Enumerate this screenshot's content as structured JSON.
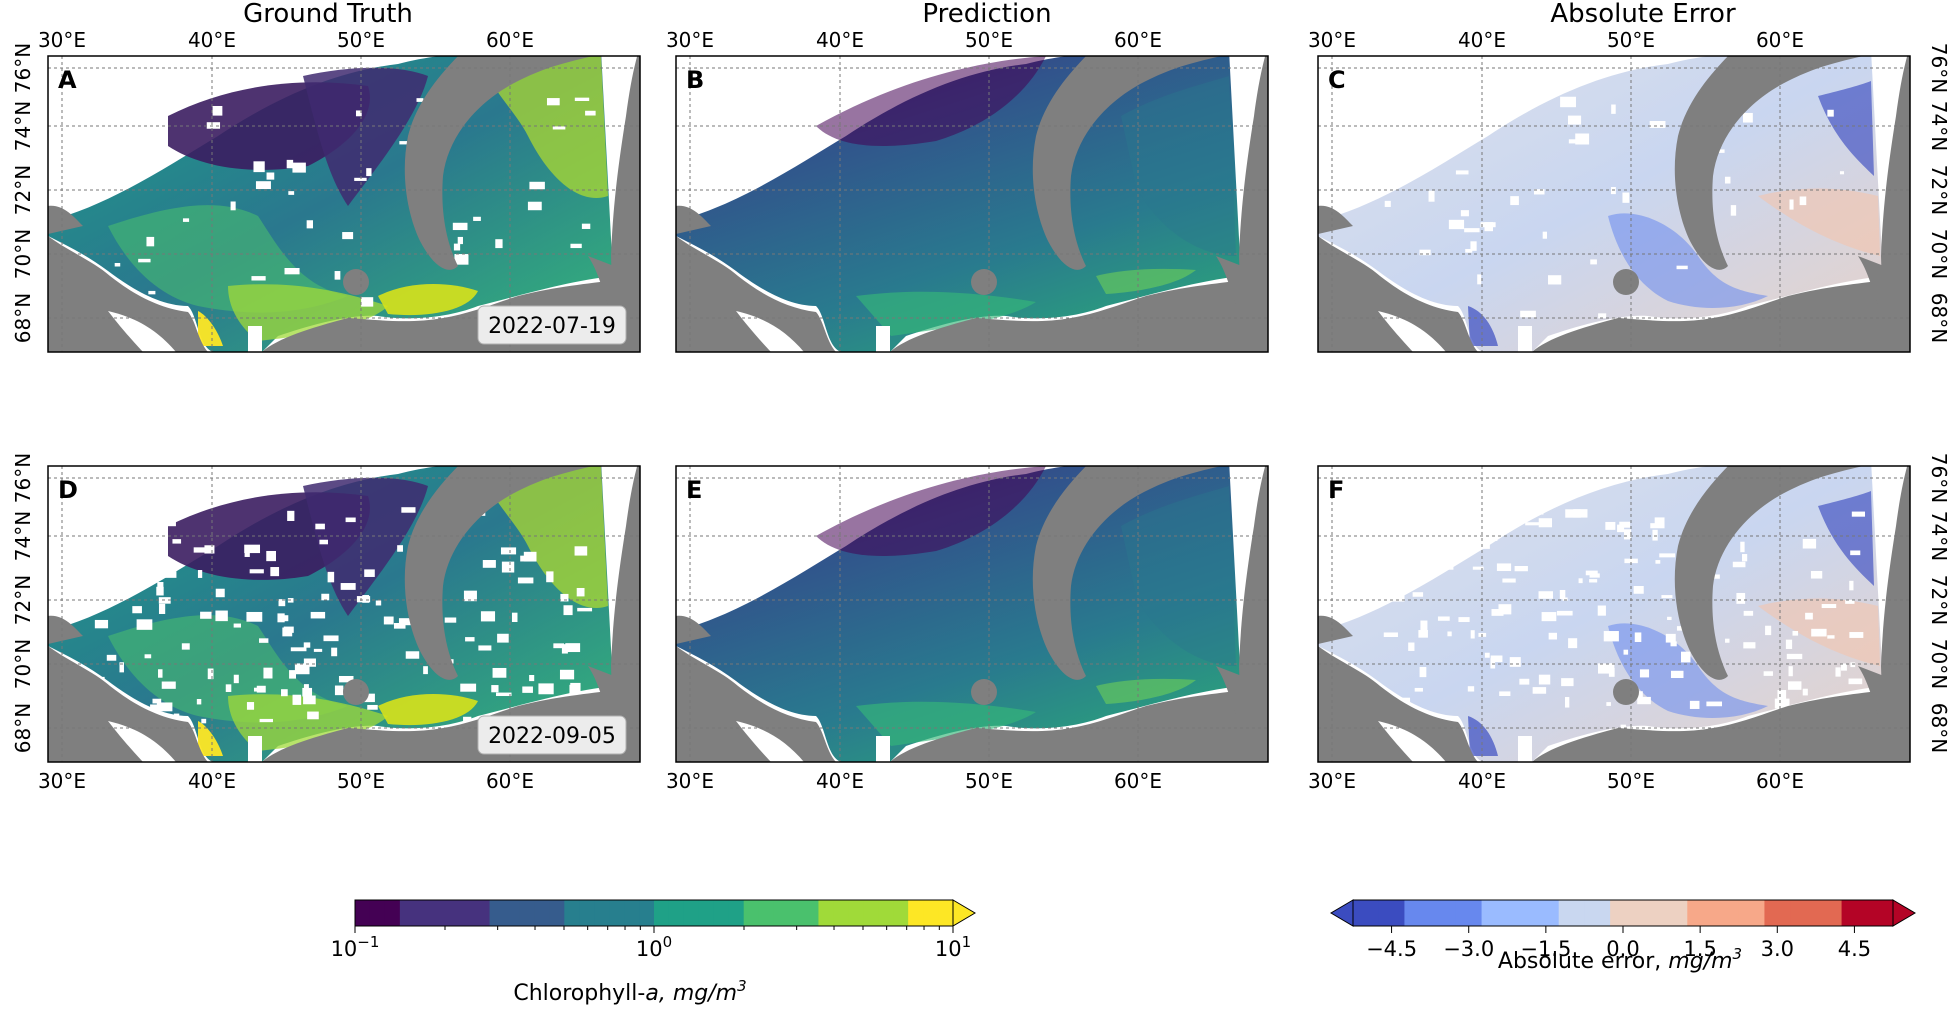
{
  "column_titles": [
    "Ground Truth",
    "Prediction",
    "Absolute Error"
  ],
  "panels": [
    {
      "letter": "A",
      "kind": "truth",
      "date": "2022-07-19"
    },
    {
      "letter": "B",
      "kind": "pred",
      "date": ""
    },
    {
      "letter": "C",
      "kind": "error",
      "date": ""
    },
    {
      "letter": "D",
      "kind": "truth",
      "date": "2022-09-05"
    },
    {
      "letter": "E",
      "kind": "pred",
      "date": ""
    },
    {
      "letter": "F",
      "kind": "error",
      "date": ""
    }
  ],
  "lon_ticks": [
    "30°E",
    "40°E",
    "50°E",
    "60°E"
  ],
  "lat_ticks": [
    "68°N",
    "70°N",
    "72°N",
    "74°N",
    "76°N"
  ],
  "colorbar_chl": {
    "label_prefix": "Chlorophyll-",
    "label_var": "a",
    "label_unit": ", mg/m",
    "label_exp": "3",
    "tick_base": [
      "10",
      "10",
      "10"
    ],
    "tick_exp": [
      "−1",
      "0",
      "1"
    ],
    "scale": "log",
    "range": [
      0.1,
      10
    ],
    "colors": [
      "#440154",
      "#46327e",
      "#365c8d",
      "#277f8e",
      "#1fa187",
      "#4ac16d",
      "#a0da39",
      "#fde725"
    ]
  },
  "colorbar_err": {
    "label_prefix": "Absolute error, ",
    "label_unit": "mg/m",
    "label_exp": "3",
    "ticks": [
      "−4.5",
      "−3.0",
      "−1.5",
      "0.0",
      "1.5",
      "3.0",
      "4.5"
    ],
    "range": [
      -5.25,
      5.25
    ],
    "colors": [
      "#3b4cc0",
      "#6788ee",
      "#9abbff",
      "#c9d7f0",
      "#edd1c2",
      "#f7a889",
      "#e26952",
      "#b40426"
    ]
  },
  "colors": {
    "land": "#7f7f7f",
    "grid": "#777777",
    "date_box_fill": "#ececec"
  }
}
